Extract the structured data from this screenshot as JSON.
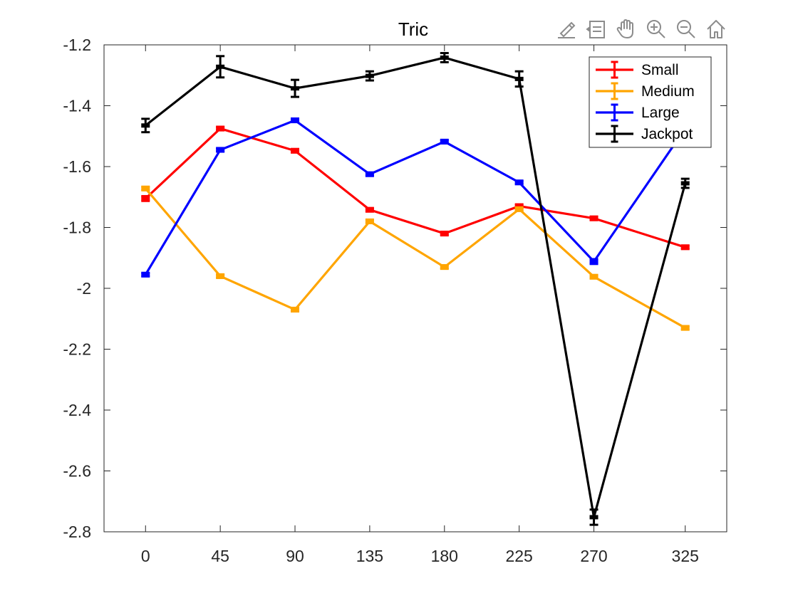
{
  "toolbar": {
    "icons": [
      "brush-icon",
      "data-tips-icon",
      "pan-hand-icon",
      "zoom-in-icon",
      "zoom-out-icon",
      "home-icon"
    ],
    "icon_color": "#8c8c8c"
  },
  "chart_data": {
    "type": "line",
    "title": "Tric",
    "xlabel": "",
    "ylabel": "",
    "x": [
      0,
      45,
      90,
      135,
      180,
      225,
      270,
      325
    ],
    "x_tick_labels": [
      "0",
      "45",
      "90",
      "135",
      "180",
      "225",
      "270",
      "325"
    ],
    "y_ticks": [
      -1.2,
      -1.4,
      -1.6,
      -1.8,
      -2,
      -2.2,
      -2.4,
      -2.6,
      -2.8
    ],
    "y_tick_labels": [
      "-1.2",
      "-1.4",
      "-1.6",
      "-1.8",
      "-2",
      "-2.2",
      "-2.4",
      "-2.6",
      "-2.8"
    ],
    "xlim": [
      -25,
      350
    ],
    "ylim": [
      -2.8,
      -1.2
    ],
    "grid": false,
    "legend_position": "top-right",
    "series": [
      {
        "name": "Small",
        "color": "#ff0000",
        "values": [
          -1.705,
          -1.475,
          -1.548,
          -1.742,
          -1.82,
          -1.73,
          -1.77,
          -1.865
        ],
        "errors": [
          0.008,
          0.006,
          0.006,
          0.006,
          0.006,
          0.006,
          0.006,
          0.006
        ]
      },
      {
        "name": "Medium",
        "color": "#ffa500",
        "values": [
          -1.672,
          -1.96,
          -2.07,
          -1.78,
          -1.93,
          -1.74,
          -1.962,
          -2.13
        ],
        "errors": [
          0.006,
          0.006,
          0.006,
          0.006,
          0.006,
          0.006,
          0.006,
          0.006
        ]
      },
      {
        "name": "Large",
        "color": "#0000ff",
        "values": [
          -1.955,
          -1.545,
          -1.448,
          -1.625,
          -1.518,
          -1.652,
          -1.912,
          -1.475
        ],
        "errors": [
          0.006,
          0.006,
          0.006,
          0.006,
          0.006,
          0.006,
          0.008,
          0.006
        ]
      },
      {
        "name": "Jackpot",
        "color": "#000000",
        "values": [
          -1.465,
          -1.272,
          -1.343,
          -1.302,
          -1.242,
          -1.312,
          -2.752,
          -1.655
        ],
        "errors": [
          0.022,
          0.035,
          0.028,
          0.015,
          0.015,
          0.025,
          0.025,
          0.015
        ]
      }
    ]
  }
}
